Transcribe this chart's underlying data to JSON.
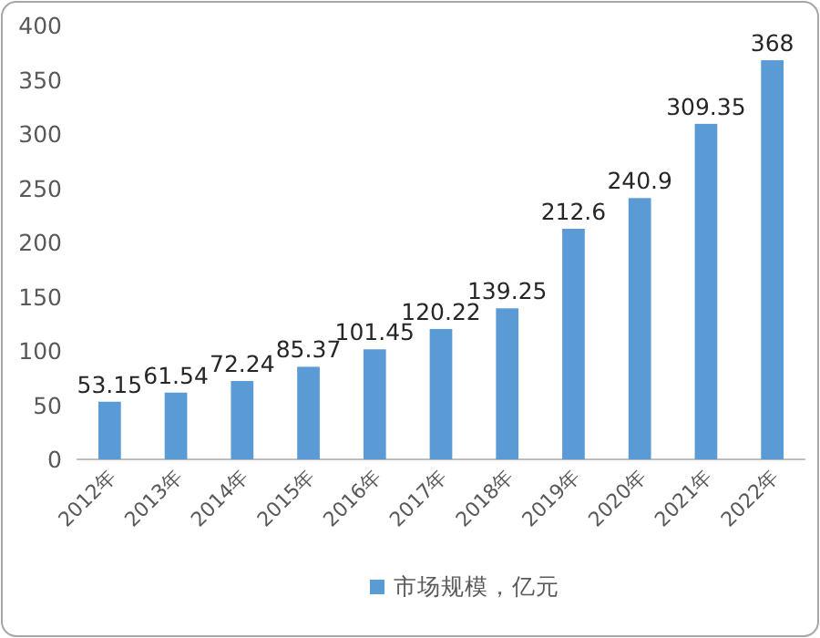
{
  "chart_data": {
    "type": "bar",
    "categories": [
      "2012年",
      "2013年",
      "2014年",
      "2015年",
      "2016年",
      "2017年",
      "2018年",
      "2019年",
      "2020年",
      "2021年",
      "2022年"
    ],
    "series": [
      {
        "name": "市场规模，亿元",
        "color": "#5b9bd5",
        "values": [
          53.15,
          61.54,
          72.24,
          85.37,
          101.45,
          120.22,
          139.25,
          212.6,
          240.9,
          309.35,
          368
        ]
      }
    ],
    "ylim": [
      0,
      400
    ],
    "yticks": [
      0,
      50,
      100,
      150,
      200,
      250,
      300,
      350,
      400
    ],
    "data_labels": true,
    "legend": "bottom"
  }
}
